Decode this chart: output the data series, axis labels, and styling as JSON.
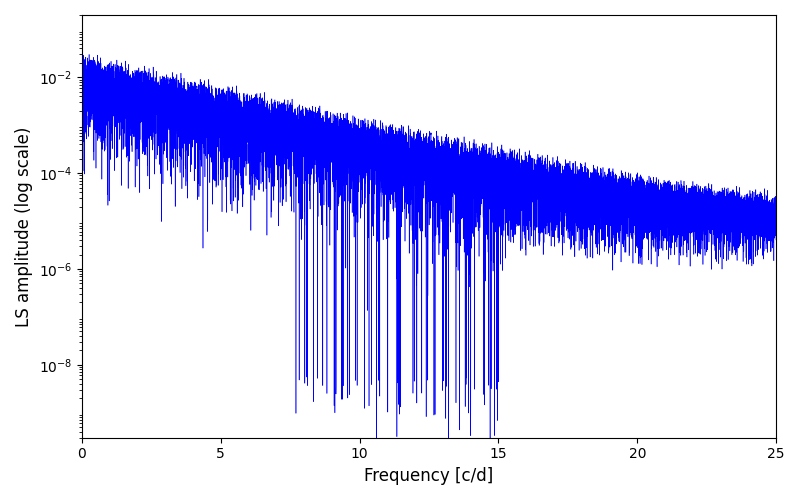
{
  "xlabel": "Frequency [c/d]",
  "ylabel": "LS amplitude (log scale)",
  "xlim": [
    0,
    25
  ],
  "ylim": [
    3e-10,
    0.2
  ],
  "yticks": [
    1e-08,
    1e-06,
    0.0001,
    0.01
  ],
  "line_color": "#0000ff",
  "background_color": "#ffffff",
  "figsize": [
    8.0,
    5.0
  ],
  "dpi": 100,
  "freq_max": 25.0,
  "n_points": 15000,
  "seed": 12345
}
